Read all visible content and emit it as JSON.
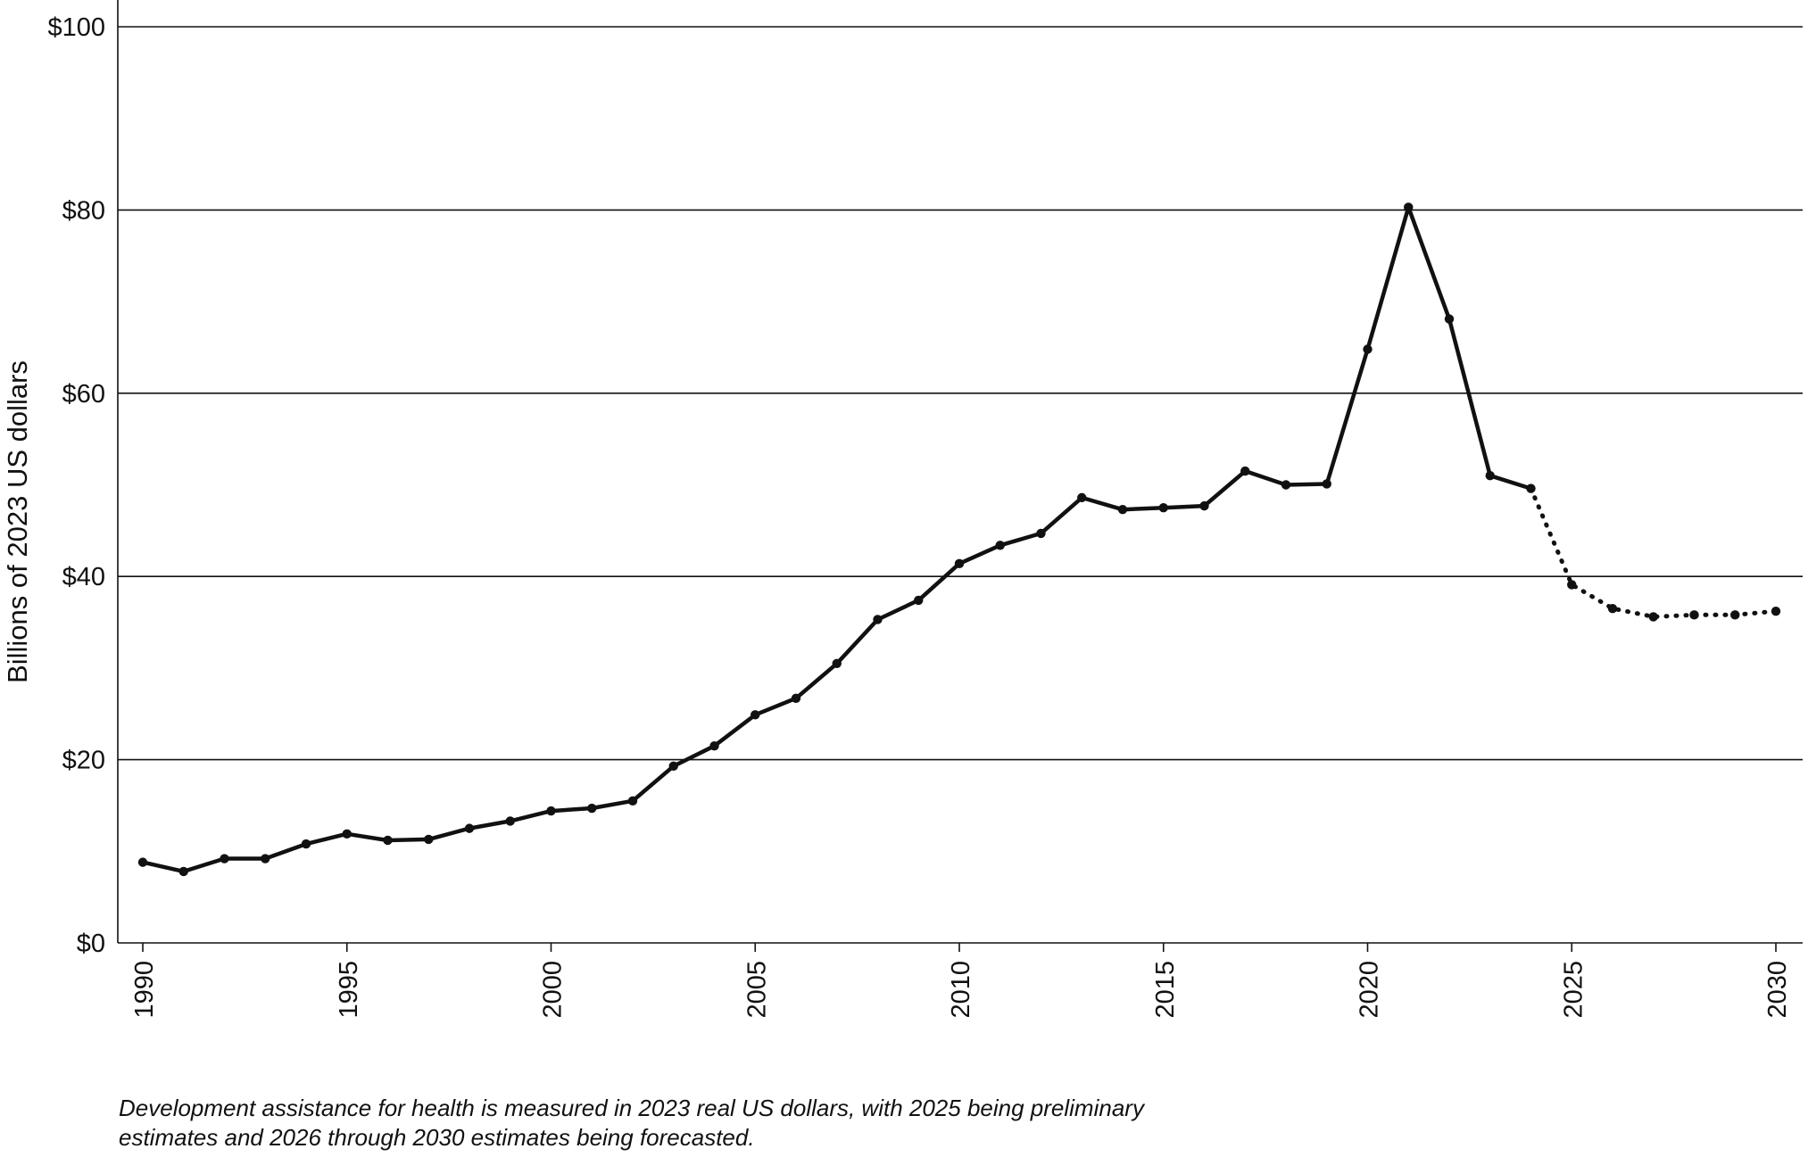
{
  "footnote": "Development assistance for health is measured in 2023 real US dollars, with 2025 being preliminary estimates and 2026 through 2030 estimates being forecasted.",
  "chart_data": {
    "type": "line",
    "ylabel": "Billions of 2023 US dollars",
    "xlabel": "",
    "ylim": [
      0,
      100
    ],
    "xlim": [
      1990,
      2030
    ],
    "yticks": [
      0,
      20,
      40,
      60,
      80,
      100
    ],
    "ytick_labels": [
      "$0",
      "$20",
      "$40",
      "$60",
      "$80",
      "$100"
    ],
    "xticks": [
      1990,
      1995,
      2000,
      2005,
      2010,
      2015,
      2020,
      2025,
      2030
    ],
    "xtick_labels": [
      "1990",
      "1995",
      "2000",
      "2005",
      "2010",
      "2015",
      "2020",
      "2025",
      "2030"
    ],
    "grid": true,
    "series": [
      {
        "style": "solid",
        "x": [
          1990,
          1991,
          1992,
          1993,
          1994,
          1995,
          1996,
          1997,
          1998,
          1999,
          2000,
          2001,
          2002,
          2003,
          2004,
          2005,
          2006,
          2007,
          2008,
          2009,
          2010,
          2011,
          2012,
          2013,
          2014,
          2015,
          2016,
          2017,
          2018,
          2019,
          2020,
          2021,
          2022,
          2023,
          2024
        ],
        "values": [
          8.8,
          7.8,
          9.2,
          9.2,
          10.8,
          11.9,
          11.2,
          11.3,
          12.5,
          13.3,
          14.4,
          14.7,
          15.5,
          19.3,
          21.5,
          24.9,
          26.7,
          30.5,
          35.3,
          37.4,
          41.4,
          43.4,
          44.7,
          48.6,
          47.3,
          47.5,
          47.7,
          51.5,
          50.0,
          50.1,
          64.8,
          80.3,
          68.1,
          51.0,
          49.6
        ]
      },
      {
        "style": "dotted",
        "x": [
          2024,
          2025,
          2026,
          2027,
          2028,
          2029,
          2030
        ],
        "values": [
          49.6,
          39.1,
          36.5,
          35.6,
          35.8,
          35.8,
          36.2
        ]
      }
    ]
  }
}
